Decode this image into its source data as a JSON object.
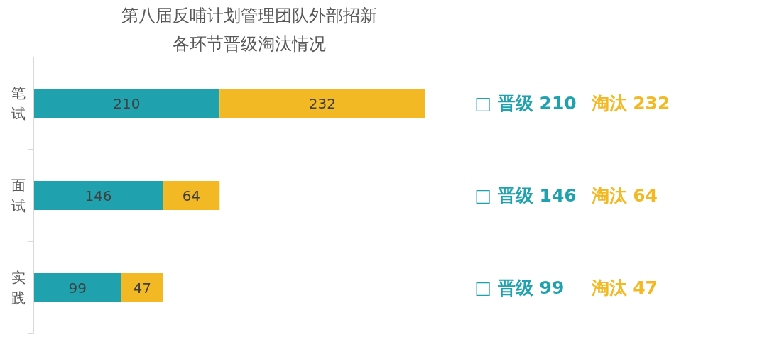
{
  "chart_data": {
    "type": "bar",
    "orientation": "horizontal",
    "stacked": true,
    "title": "第八届反哺计划管理团队外部招新",
    "subtitle": "各环节晋级淘汰情况",
    "categories": [
      "笔试",
      "面试",
      "实践"
    ],
    "series": [
      {
        "color": "#1fa2ad",
        "values": [
          210,
          146,
          99
        ]
      },
      {
        "color": "#f2b925",
        "values": [
          232,
          64,
          47
        ]
      }
    ],
    "tick_labels": "y",
    "data_labels": true,
    "annotations": [
      "□ 晋级 210",
      "淘汰 232",
      "□ 晋级 146",
      "淘汰 64",
      "□ 晋级 99",
      "淘汰 47"
    ]
  }
}
